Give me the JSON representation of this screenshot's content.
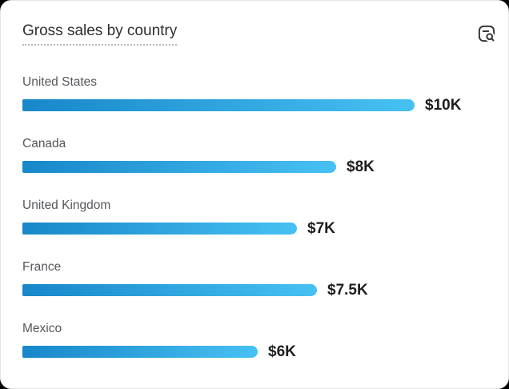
{
  "card": {
    "title": "Gross sales by country",
    "icons": {
      "header_action": "report-search-icon"
    },
    "colors": {
      "bar_gradient_start": "#1787c9",
      "bar_gradient_end": "#47c1f3",
      "card_background": "#ffffff",
      "icon_stroke": "#36383b"
    }
  },
  "chart_data": {
    "type": "bar",
    "orientation": "horizontal",
    "title": "Gross sales by country",
    "categories": [
      "United States",
      "Canada",
      "United Kingdom",
      "France",
      "Mexico"
    ],
    "values": [
      10000,
      8000,
      7000,
      7500,
      6000
    ],
    "value_labels": [
      "$10K",
      "$8K",
      "$7K",
      "$7.5K",
      "$6K"
    ],
    "xlim": [
      0,
      10000
    ],
    "bar_gradient": [
      "#1787c9",
      "#47c1f3"
    ],
    "grid": false,
    "legend": false
  }
}
